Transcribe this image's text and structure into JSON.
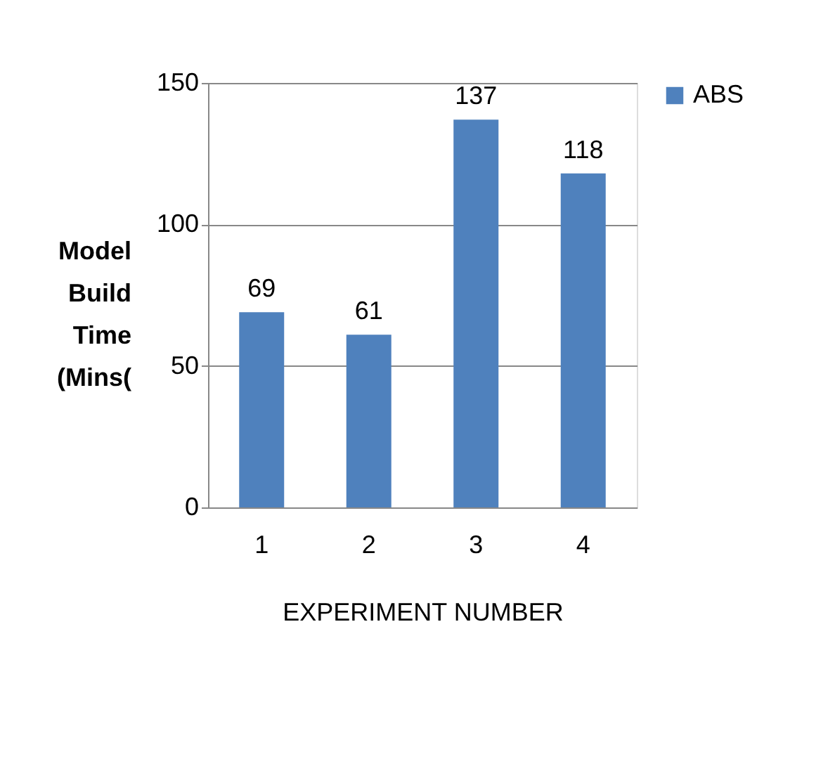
{
  "chart_data": {
    "type": "bar",
    "xlabel": "EXPERIMENT NUMBER",
    "ylabel": "Model Build Time (Mins(",
    "categories": [
      "1",
      "2",
      "3",
      "4"
    ],
    "series": [
      {
        "name": "ABS",
        "color": "#4f81bd",
        "values": [
          69,
          61,
          137,
          118
        ]
      }
    ],
    "ylim": [
      0,
      150
    ],
    "yticks": [
      0,
      50,
      100,
      150
    ],
    "grid": "y",
    "legend": "right",
    "data_labels": true
  }
}
